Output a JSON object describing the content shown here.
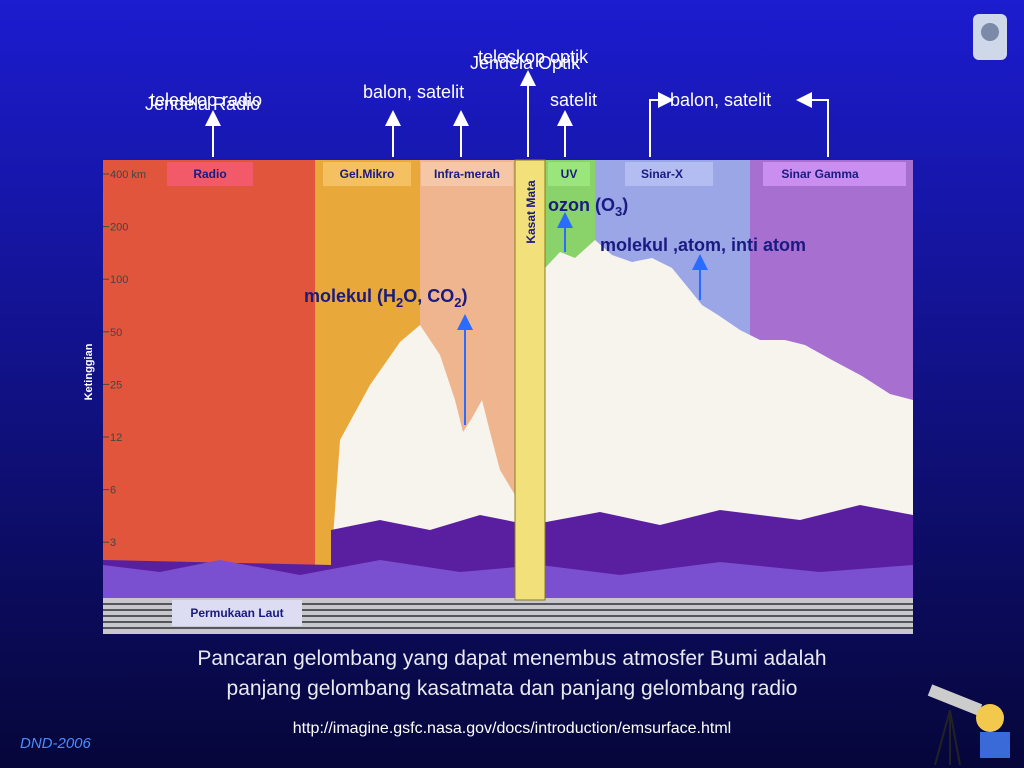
{
  "header": {
    "labels": [
      "teleskop radio",
      "Jendela Radio",
      "balon, satelit",
      "teleskop optik",
      "Jendela Optik",
      "satelit",
      "balon, satelit"
    ]
  },
  "bands": [
    "Radio",
    "Gel.Mikro",
    "Infra-merah",
    "Kasat Mata",
    "UV",
    "Sinar-X",
    "Sinar Gamma"
  ],
  "axis": {
    "title": "Ketinggian",
    "ticks": [
      "400 km",
      "200",
      "100",
      "50",
      "25",
      "12",
      "6",
      "3"
    ]
  },
  "annotations": {
    "ozone": [
      "ozon (O",
      "3",
      ")"
    ],
    "particles": "molekul ,atom, inti atom",
    "molecules": [
      "molekul (H",
      "2",
      "O, CO",
      "2",
      ")"
    ]
  },
  "surface": "Permukaan Laut",
  "caption": [
    "Pancaran gelombang yang dapat menembus atmosfer Bumi adalah",
    "panjang gelombang kasatmata dan panjang gelombang radio"
  ],
  "source": "http://imagine.gsfc.nasa.gov/docs/introduction/emsurface.html",
  "credit": "DND-2006"
}
